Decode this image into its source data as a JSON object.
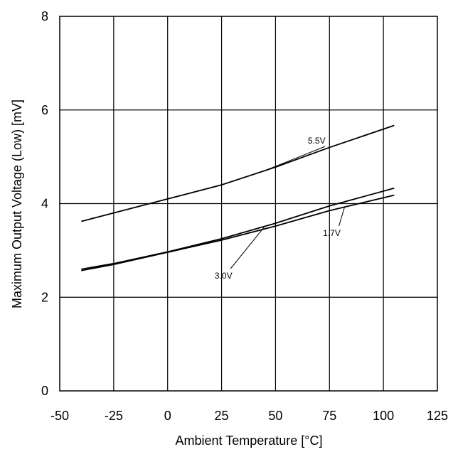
{
  "chart_data": {
    "type": "line",
    "title": "",
    "xlabel": "Ambient Temperature [°C]",
    "ylabel": "Maximum Output Voltage (Low) [mV]",
    "xlim": [
      -50,
      125
    ],
    "ylim": [
      0,
      8
    ],
    "x_ticks": [
      "-50",
      "-25",
      "0",
      "25",
      "50",
      "75",
      "100",
      "125"
    ],
    "y_ticks": [
      "0",
      "2",
      "4",
      "6",
      "8"
    ],
    "grid": true,
    "legend": "none",
    "line_color": "#000000",
    "series": [
      {
        "name": "5.5V",
        "x": [
          -40,
          -25,
          0,
          25,
          50,
          75,
          105
        ],
        "y": [
          3.62,
          3.8,
          4.1,
          4.4,
          4.78,
          5.2,
          5.67
        ]
      },
      {
        "name": "3.0V",
        "x": [
          -40,
          -25,
          0,
          25,
          50,
          75,
          105
        ],
        "y": [
          2.6,
          2.72,
          2.97,
          3.25,
          3.58,
          3.95,
          4.33
        ]
      },
      {
        "name": "1.7V",
        "x": [
          -40,
          -25,
          0,
          25,
          50,
          75,
          105
        ],
        "y": [
          2.57,
          2.7,
          2.96,
          3.22,
          3.52,
          3.85,
          4.18
        ]
      }
    ],
    "annotations": [
      {
        "text": "5.5V",
        "series": "5.5V",
        "x": 45,
        "label_at": [
          73,
          202
        ]
      },
      {
        "text": "3.0V",
        "series": "3.0V",
        "x": 45,
        "label_at": [
          -58,
          392
        ]
      },
      {
        "text": "1.7V",
        "series": "1.7V",
        "x": 82,
        "label_at": [
          -18,
          332
        ]
      }
    ]
  }
}
